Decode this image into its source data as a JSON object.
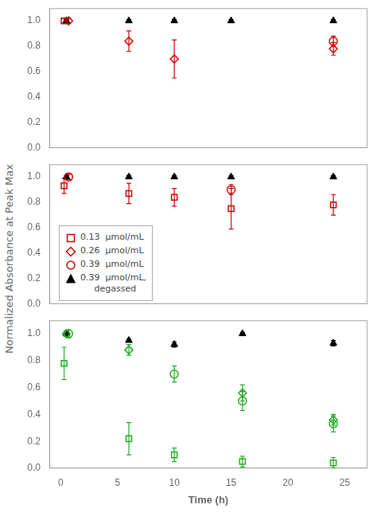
{
  "chart_data": [
    {
      "type": "scatter",
      "xlim": [
        -1,
        27
      ],
      "xticks": [
        0,
        5,
        10,
        15,
        20,
        25
      ],
      "ylim": [
        0.0,
        1.1
      ],
      "yticks": [
        {
          "value": 0.0,
          "label": "0.0"
        },
        {
          "value": 0.2,
          "label": "0.2"
        },
        {
          "value": 0.4,
          "label": "0.4"
        },
        {
          "value": 0.6,
          "label": "0.6"
        },
        {
          "value": 0.8,
          "label": "0.8"
        },
        {
          "value": 1.0,
          "label": "1.0"
        }
      ],
      "grid": false,
      "tick_labels": "y",
      "series": [
        {
          "marker": "square",
          "color": "#CC0000",
          "x": [
            0.3
          ],
          "values": [
            1.0
          ],
          "errors": [
            0.02
          ]
        },
        {
          "marker": "diamond",
          "color": "#CC0000",
          "x": [
            0.7,
            6,
            10,
            24
          ],
          "values": [
            1.0,
            0.84,
            0.7,
            0.78
          ],
          "errors": [
            0.02,
            0.08,
            0.15,
            0.05
          ]
        },
        {
          "marker": "circle",
          "color": "#CC0000",
          "x": [
            24
          ],
          "values": [
            0.84
          ],
          "errors": [
            0.04
          ]
        },
        {
          "marker": "triangle",
          "color": "#000000",
          "x": [
            0.5,
            6,
            10,
            15,
            24
          ],
          "values": [
            1.0,
            1.0,
            1.0,
            1.0,
            1.0
          ],
          "errors": [
            0.01,
            0.01,
            0.01,
            0.01,
            0.01
          ]
        }
      ]
    },
    {
      "type": "scatter",
      "ylabel": "Normalized Absorbance at Peak Max",
      "xlim": [
        -1,
        27
      ],
      "xticks": [
        0,
        5,
        10,
        15,
        20,
        25
      ],
      "ylim": [
        0.0,
        1.1
      ],
      "yticks": [
        {
          "value": 0.0,
          "label": "0.0"
        },
        {
          "value": 0.2,
          "label": "0.2"
        },
        {
          "value": 0.4,
          "label": "0.4"
        },
        {
          "value": 0.6,
          "label": "0.6"
        },
        {
          "value": 0.8,
          "label": "0.8"
        },
        {
          "value": 1.0,
          "label": "1.0"
        }
      ],
      "grid": false,
      "tick_labels": "y",
      "legend": "lower left",
      "series": [
        {
          "name": "0.13  μmol/mL",
          "marker": "square",
          "color": "#CC0000",
          "x": [
            0.3,
            6,
            10,
            15,
            24
          ],
          "values": [
            0.93,
            0.87,
            0.84,
            0.75,
            0.78
          ],
          "errors": [
            0.06,
            0.08,
            0.07,
            0.16,
            0.08
          ]
        },
        {
          "name": "0.26  μmol/mL",
          "marker": "diamond",
          "color": "#CC0000",
          "x": [],
          "values": [],
          "errors": []
        },
        {
          "name": "0.39  μmol/mL",
          "marker": "circle",
          "color": "#CC0000",
          "x": [
            0.7,
            15
          ],
          "values": [
            1.0,
            0.9
          ],
          "errors": [
            0.02,
            0.04
          ]
        },
        {
          "name": "0.39  μmol/mL,\n     degassed",
          "marker": "triangle",
          "color": "#000000",
          "x": [
            0.5,
            6,
            10,
            15,
            24
          ],
          "values": [
            1.0,
            1.0,
            1.0,
            1.0,
            1.0
          ],
          "errors": [
            0.01,
            0.01,
            0.01,
            0.01,
            0.01
          ]
        }
      ]
    },
    {
      "type": "scatter",
      "xlabel": "Time (h)",
      "xlim": [
        -1,
        27
      ],
      "xticks": [
        0,
        5,
        10,
        15,
        20,
        25
      ],
      "ylim": [
        0.0,
        1.1
      ],
      "yticks": [
        {
          "value": 0.0,
          "label": "0.0"
        },
        {
          "value": 0.2,
          "label": "0.2"
        },
        {
          "value": 0.4,
          "label": "0.4"
        },
        {
          "value": 0.6,
          "label": "0.6"
        },
        {
          "value": 0.8,
          "label": "0.8"
        },
        {
          "value": 1.0,
          "label": "1.0"
        }
      ],
      "grid": false,
      "series": [
        {
          "marker": "square",
          "color": "#22AA22",
          "x": [
            0.3,
            6,
            10,
            16,
            24
          ],
          "values": [
            0.78,
            0.22,
            0.1,
            0.05,
            0.04
          ],
          "errors": [
            0.12,
            0.12,
            0.05,
            0.04,
            0.04
          ]
        },
        {
          "marker": "diamond",
          "color": "#22AA22",
          "x": [
            0.5,
            6,
            16,
            24
          ],
          "values": [
            1.0,
            0.88,
            0.56,
            0.36
          ],
          "errors": [
            0.02,
            0.04,
            0.06,
            0.04
          ]
        },
        {
          "marker": "circle",
          "color": "#22AA22",
          "x": [
            0.7,
            10,
            16,
            24
          ],
          "values": [
            1.0,
            0.7,
            0.5,
            0.33
          ],
          "errors": [
            0.03,
            0.06,
            0.07,
            0.06
          ]
        },
        {
          "marker": "triangle",
          "color": "#000000",
          "x": [
            0.5,
            6,
            10,
            16,
            24
          ],
          "values": [
            1.0,
            0.95,
            0.92,
            1.0,
            0.93
          ],
          "errors": [
            0.02,
            0.01,
            0.02,
            0.01,
            0.02
          ]
        }
      ]
    }
  ]
}
